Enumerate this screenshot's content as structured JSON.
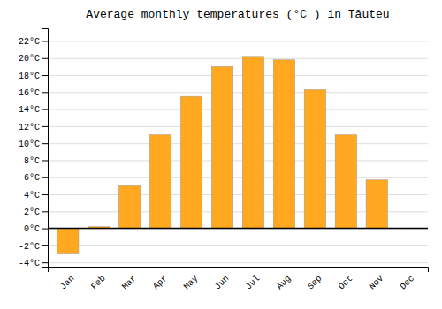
{
  "chart_data": {
    "type": "bar",
    "title": "Average monthly temperatures (°C ) in Tăuteu",
    "categories": [
      "Jan",
      "Feb",
      "Mar",
      "Apr",
      "May",
      "Jun",
      "Jul",
      "Aug",
      "Sep",
      "Oct",
      "Nov",
      "Dec"
    ],
    "values": [
      -3.0,
      0.2,
      5.0,
      11.0,
      15.5,
      19.0,
      20.2,
      19.8,
      16.3,
      11.0,
      5.7,
      0.0
    ],
    "color": "#FFA820",
    "ylim": [
      -4.5,
      23.5
    ],
    "yticks": [
      {
        "value": -4,
        "label": "-4°C"
      },
      {
        "value": -2,
        "label": "-2°C"
      },
      {
        "value": 0,
        "label": "0°C"
      },
      {
        "value": 2,
        "label": "2°C"
      },
      {
        "value": 4,
        "label": "4°C"
      },
      {
        "value": 6,
        "label": "6°C"
      },
      {
        "value": 8,
        "label": "8°C"
      },
      {
        "value": 10,
        "label": "10°C"
      },
      {
        "value": 12,
        "label": "12°C"
      },
      {
        "value": 14,
        "label": "14°C"
      },
      {
        "value": 16,
        "label": "16°C"
      },
      {
        "value": 18,
        "label": "18°C"
      },
      {
        "value": 20,
        "label": "20°C"
      },
      {
        "value": 22,
        "label": "22°C"
      }
    ],
    "grid": true
  }
}
